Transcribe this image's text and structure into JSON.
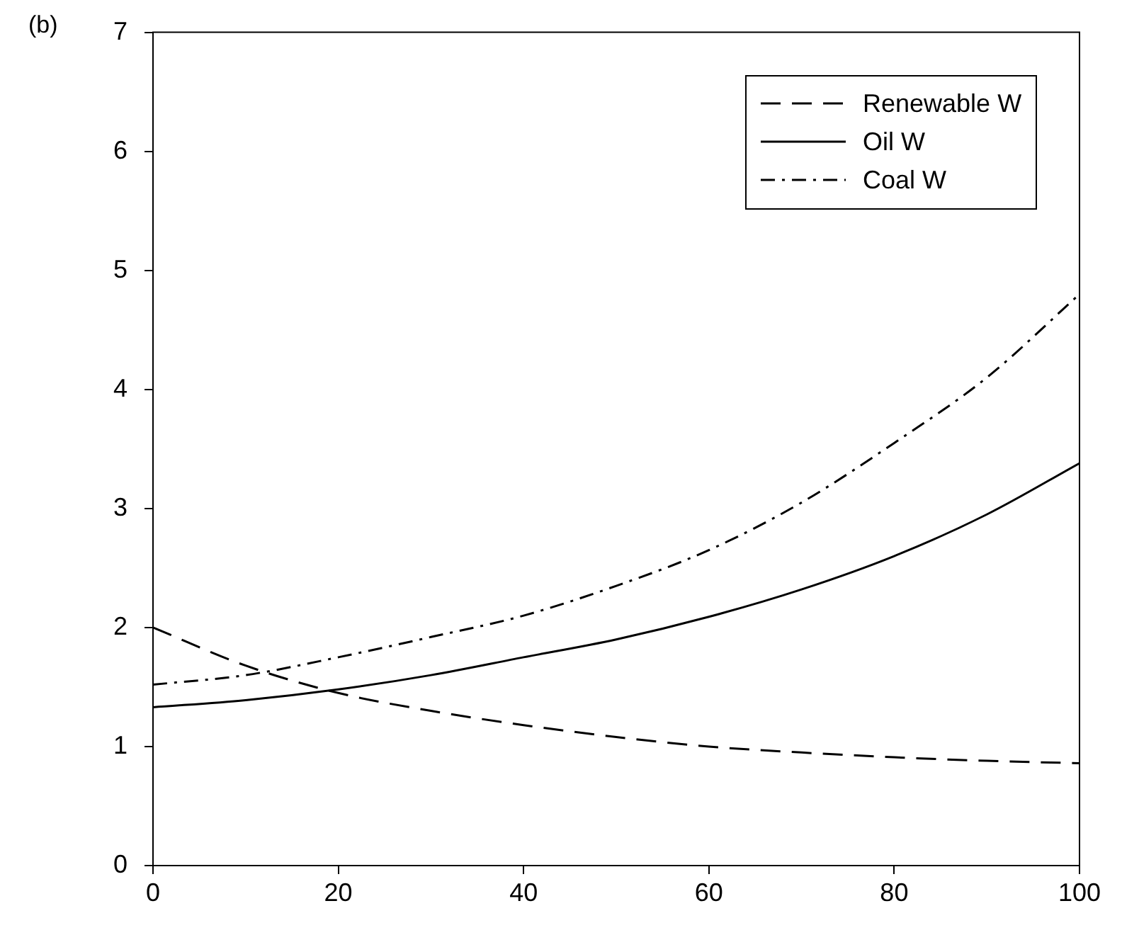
{
  "chart_data": {
    "type": "line",
    "annotations": [
      "(b)"
    ],
    "xlim": [
      0,
      100
    ],
    "xticks": [
      0,
      20,
      40,
      60,
      80,
      100
    ],
    "ylim": [
      0,
      7
    ],
    "yticks": [
      0,
      1,
      2,
      3,
      4,
      5,
      6,
      7
    ],
    "grid": false,
    "legend": "top right",
    "marker": "none",
    "x": [
      0,
      10,
      20,
      30,
      40,
      50,
      60,
      70,
      80,
      90,
      100
    ],
    "series": [
      {
        "name": "Renewable W",
        "color": "#000000",
        "line_style": "dashed",
        "values": [
          2.0,
          1.68,
          1.45,
          1.3,
          1.18,
          1.08,
          1.0,
          0.95,
          0.91,
          0.88,
          0.86
        ]
      },
      {
        "name": "Oil W",
        "color": "#000000",
        "line_style": "solid",
        "values": [
          1.33,
          1.39,
          1.48,
          1.6,
          1.75,
          1.9,
          2.09,
          2.32,
          2.6,
          2.95,
          3.38
        ]
      },
      {
        "name": "Coal W",
        "color": "#000000",
        "line_style": "dashdot",
        "values": [
          1.52,
          1.6,
          1.75,
          1.92,
          2.1,
          2.35,
          2.65,
          3.05,
          3.55,
          4.1,
          4.8
        ]
      }
    ]
  }
}
